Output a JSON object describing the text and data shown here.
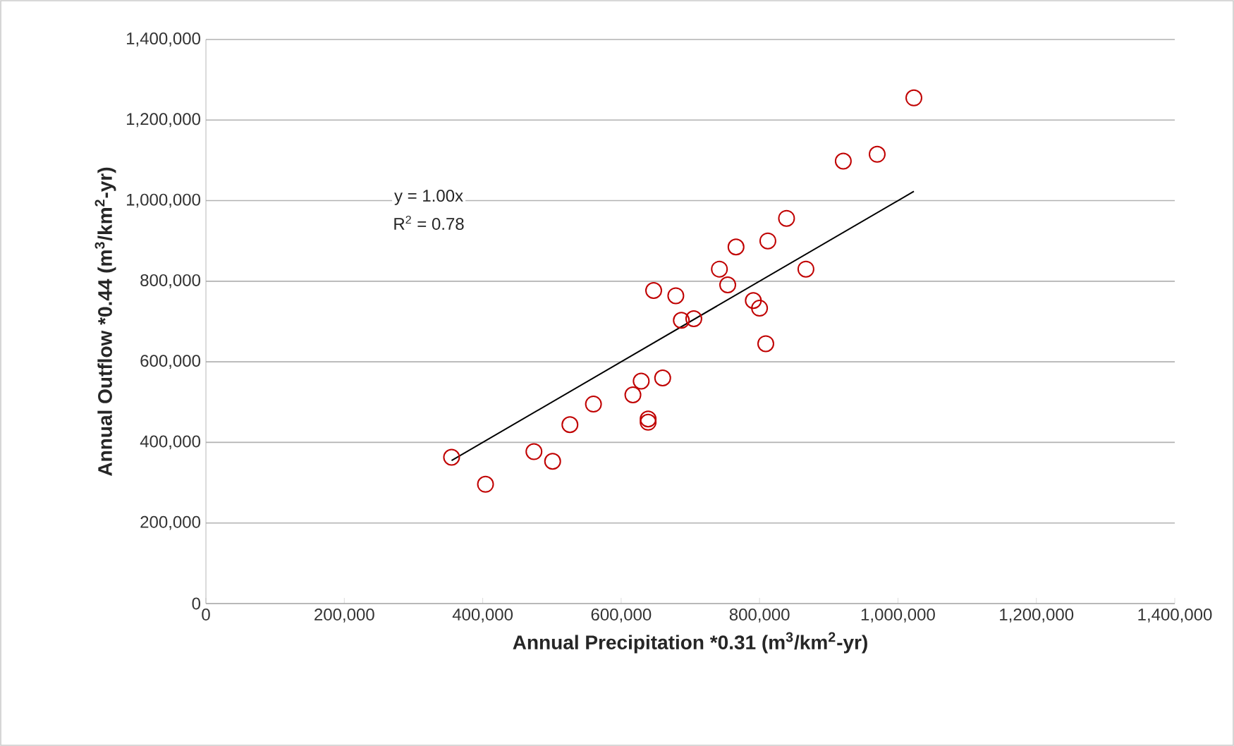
{
  "chart_data": {
    "type": "scatter",
    "xlabel": "Annual Precipitation *0.31 (m$^{3}$/km$^{2}$-yr)",
    "ylabel": "Annual Outflow *0.44 (m$^{3}$/km$^{2}$-yr)",
    "xlim": [
      0,
      1400000
    ],
    "ylim": [
      0,
      1400000
    ],
    "xticks": [
      0,
      {
        "value": 200000,
        "label": "200,000"
      },
      {
        "value": 400000,
        "label": "400,000"
      },
      {
        "value": 600000,
        "label": "600,000"
      },
      {
        "value": 800000,
        "label": "800,000"
      },
      {
        "value": 1000000,
        "label": "1,000,000"
      },
      {
        "value": 1200000,
        "label": "1,200,000"
      },
      {
        "value": 1400000,
        "label": "1,400,000"
      }
    ],
    "yticks": [
      0,
      {
        "value": 200000,
        "label": "200,000"
      },
      {
        "value": 400000,
        "label": "400,000"
      },
      {
        "value": 600000,
        "label": "600,000"
      },
      {
        "value": 800000,
        "label": "800,000"
      },
      {
        "value": 1000000,
        "label": "1,000,000"
      },
      {
        "value": 1200000,
        "label": "1,200,000"
      },
      {
        "value": 1400000,
        "label": "1,400,000"
      }
    ],
    "grid": "y",
    "annotations": [
      "y = 1.00x",
      "R$^{2}$ = 0.78"
    ],
    "series": [
      {
        "marker": "circle",
        "color": "#c00000",
        "x": [
          355000,
          404000,
          474000,
          501000,
          526000,
          560000,
          617000,
          629000,
          639000,
          639000,
          660000,
          647000,
          679000,
          687000,
          705000,
          742000,
          754000,
          766000,
          791000,
          800000,
          809000,
          812000,
          839000,
          867000,
          921000,
          970000,
          1023000
        ],
        "values": [
          363000,
          296000,
          377000,
          353000,
          444000,
          495000,
          518000,
          552000,
          458000,
          450000,
          560000,
          777000,
          764000,
          703000,
          707000,
          830000,
          791000,
          885000,
          752000,
          733000,
          645000,
          900000,
          956000,
          830000,
          1098000,
          1115000,
          1255000
        ]
      },
      {
        "type": "line",
        "color": "#000000",
        "x": [
          355000,
          1023000
        ],
        "values": [
          355000,
          1023000
        ]
      }
    ]
  }
}
